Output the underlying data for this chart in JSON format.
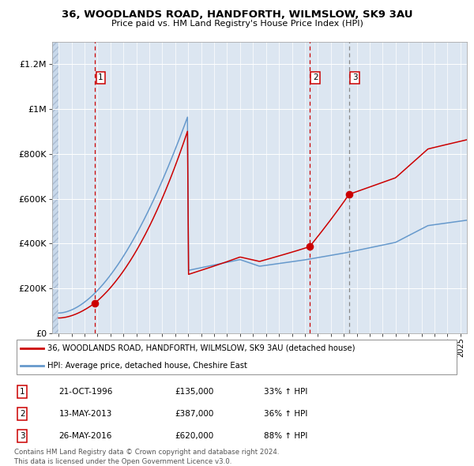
{
  "title1": "36, WOODLANDS ROAD, HANDFORTH, WILMSLOW, SK9 3AU",
  "title2": "Price paid vs. HM Land Registry's House Price Index (HPI)",
  "legend_red": "36, WOODLANDS ROAD, HANDFORTH, WILMSLOW, SK9 3AU (detached house)",
  "legend_blue": "HPI: Average price, detached house, Cheshire East",
  "transactions": [
    {
      "num": 1,
      "date": "21-OCT-1996",
      "price": 135000,
      "hpi_pct": "33% ↑ HPI",
      "x": 1996.8
    },
    {
      "num": 2,
      "date": "13-MAY-2013",
      "price": 387000,
      "hpi_pct": "36% ↑ HPI",
      "x": 2013.37
    },
    {
      "num": 3,
      "date": "26-MAY-2016",
      "price": 620000,
      "hpi_pct": "88% ↑ HPI",
      "x": 2016.4
    }
  ],
  "footer": "Contains HM Land Registry data © Crown copyright and database right 2024.\nThis data is licensed under the Open Government Licence v3.0.",
  "ylim": [
    0,
    1300000
  ],
  "xlim_start": 1993.5,
  "xlim_end": 2025.5,
  "plot_bg": "#dce6f1",
  "red_line_color": "#cc0000",
  "blue_line_color": "#6699cc",
  "vline1_color": "#cc0000",
  "vline2_color": "#cc0000",
  "vline3_color": "#888888"
}
